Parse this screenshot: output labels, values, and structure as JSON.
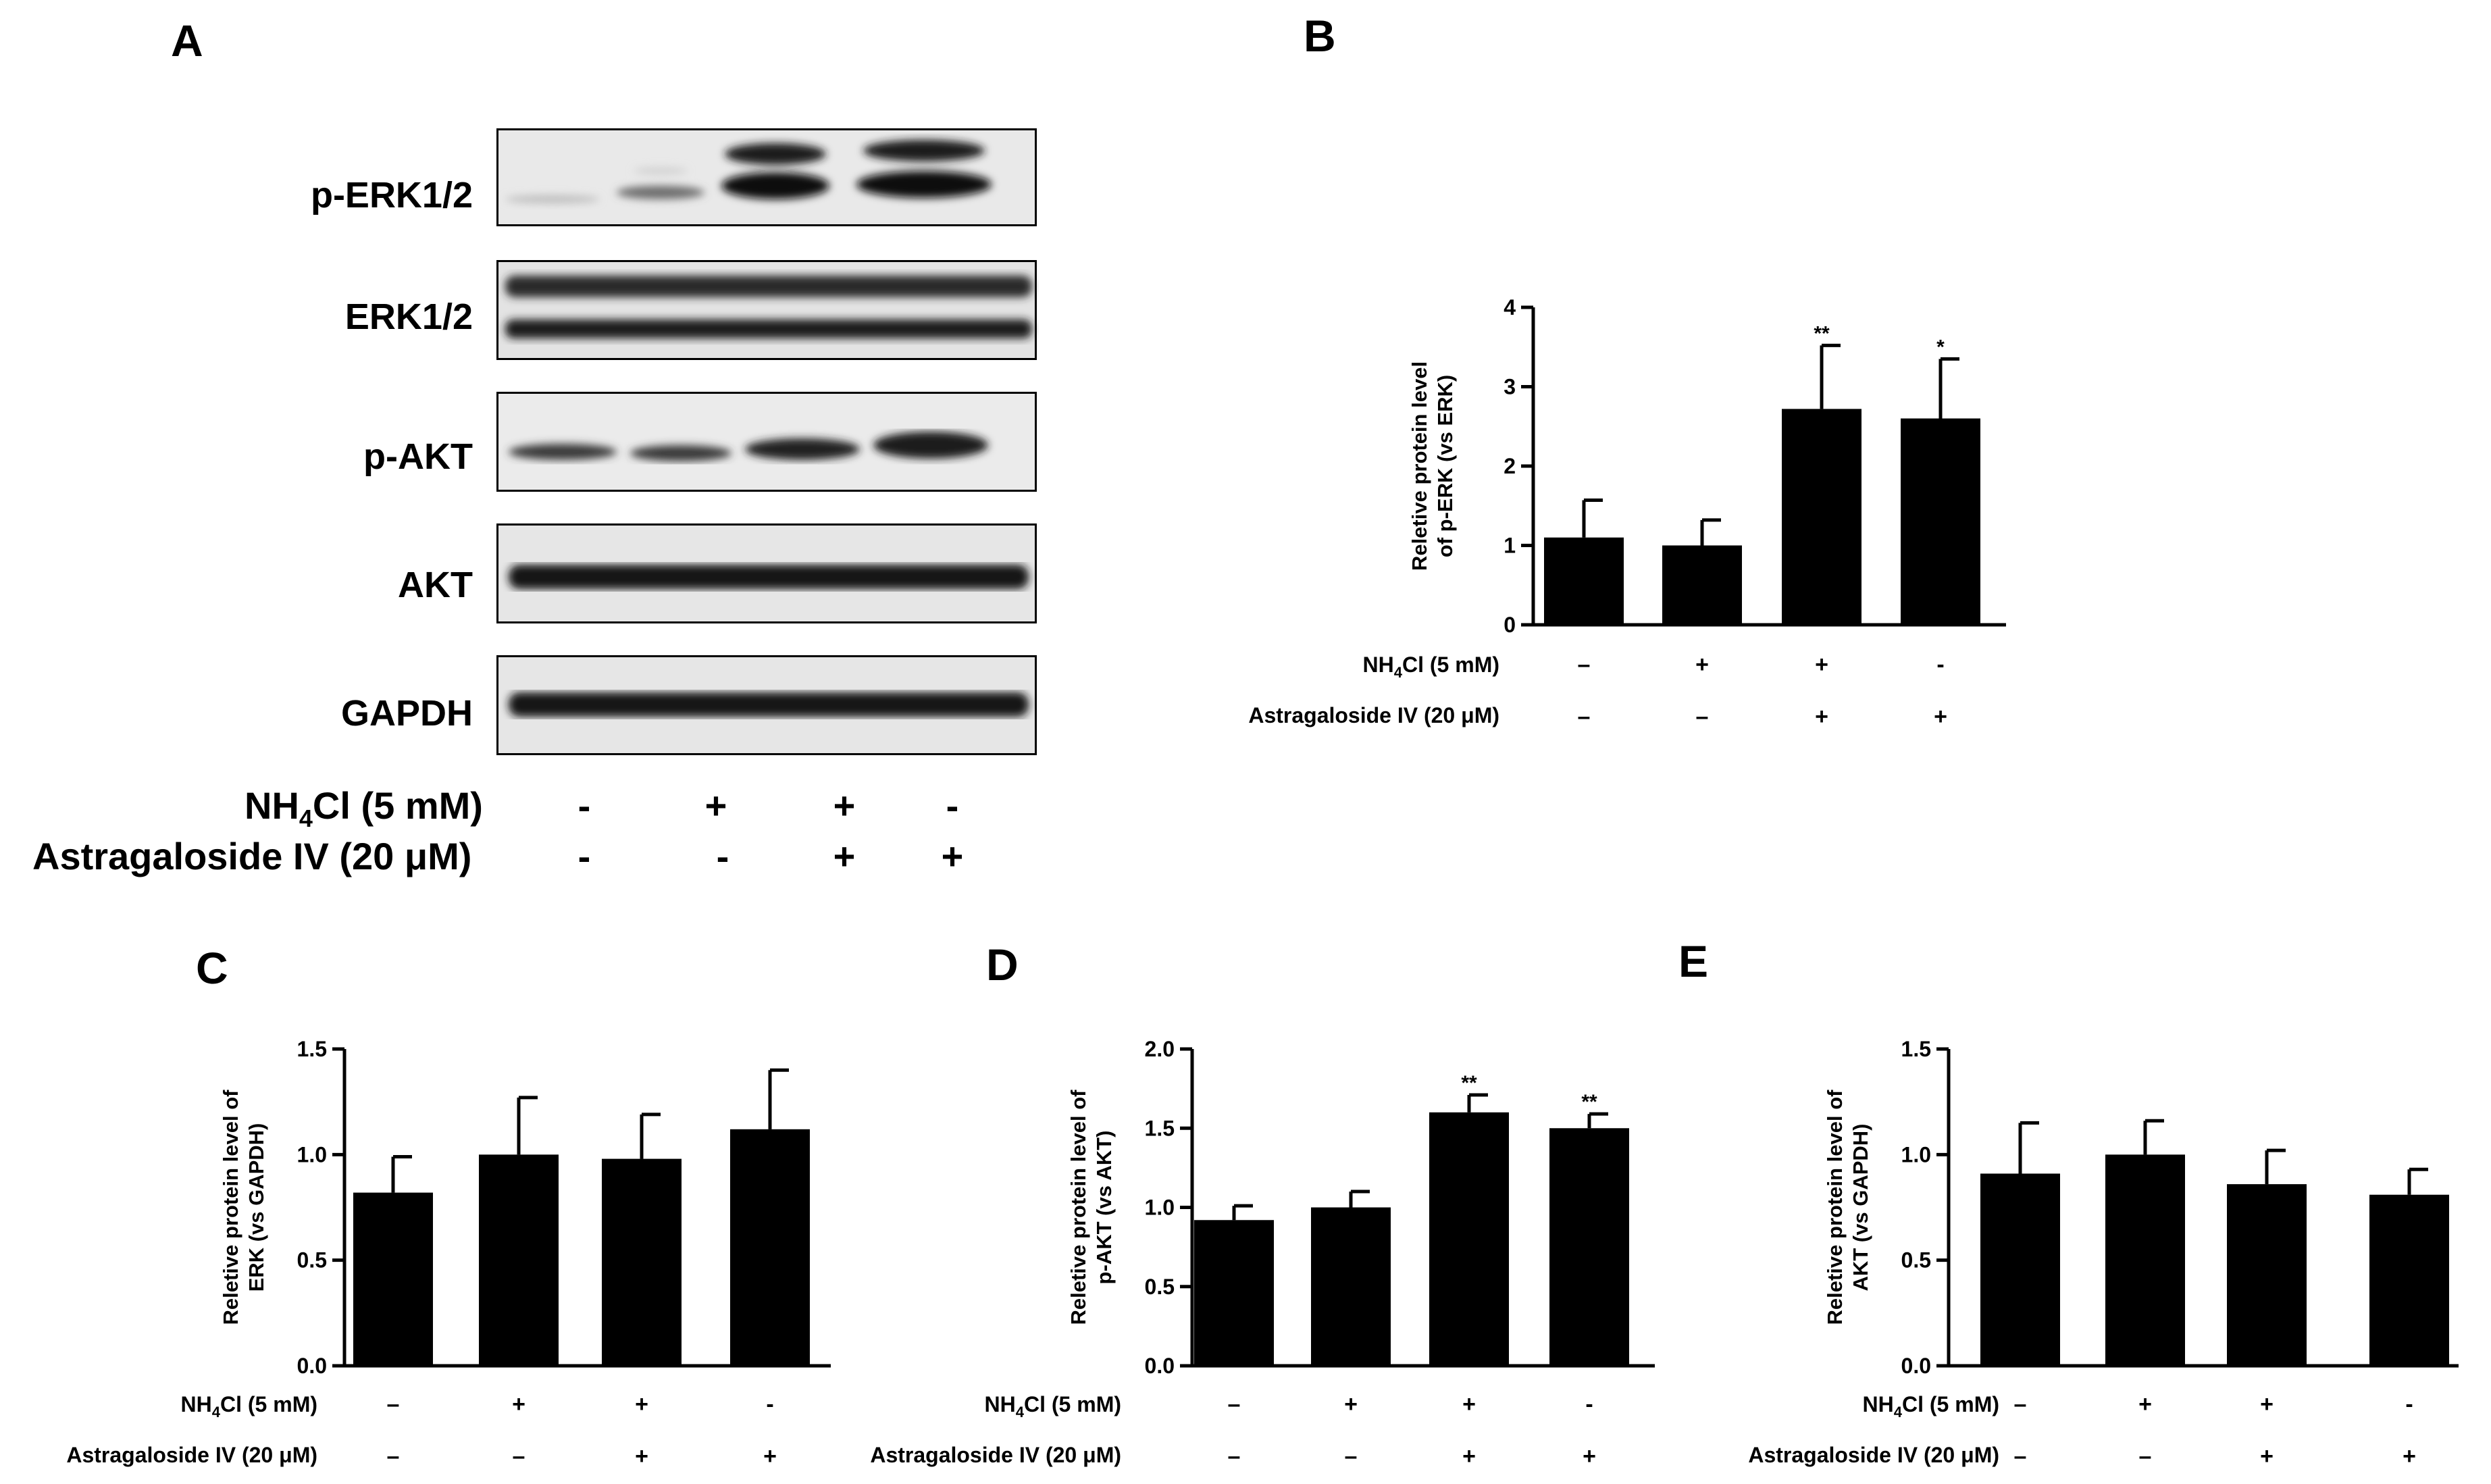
{
  "panel_a": {
    "letter": "A",
    "bands": [
      {
        "name": "p-ERK1/2"
      },
      {
        "name": "ERK1/2"
      },
      {
        "name": "p-AKT"
      },
      {
        "name": "AKT"
      },
      {
        "name": "GAPDH"
      }
    ],
    "treatments": {
      "nh4cl_label": "NH",
      "nh4cl_sub": "4",
      "nh4cl_rest": "Cl (5  mM)",
      "nh4cl_signs": [
        "-",
        "+",
        "+",
        "-"
      ],
      "astra_label": "Astragaloside IV (20  μM)",
      "astra_signs": [
        "-",
        "-",
        "+",
        "+"
      ]
    }
  },
  "chart_data": [
    {
      "panel": "B",
      "type": "bar",
      "ylabel_line1": "Reletive protein level",
      "ylabel_line2": "of p-ERK (vs ERK)",
      "ylim": [
        0,
        4
      ],
      "yticks": [
        "0",
        "1",
        "2",
        "3",
        "4"
      ],
      "values": [
        1.1,
        1.0,
        2.72,
        2.6
      ],
      "errors": [
        0.47,
        0.32,
        0.8,
        0.75
      ],
      "significance": [
        "",
        "",
        "**",
        "*"
      ],
      "nh4cl_signs": [
        "–",
        "+",
        "+",
        "-"
      ],
      "astra_signs": [
        "–",
        "–",
        "+",
        "+"
      ],
      "nh4cl_label": "NH",
      "nh4cl_sub": "4",
      "nh4cl_rest": "Cl (5  mM)",
      "astra_label": "Astragaloside IV (20  μM)"
    },
    {
      "panel": "C",
      "type": "bar",
      "ylabel_line1": "Reletive protein level of",
      "ylabel_line2": "ERK (vs GAPDH)",
      "ylim": [
        0,
        1.5
      ],
      "yticks": [
        "0.0",
        "0.5",
        "1.0",
        "1.5"
      ],
      "values": [
        0.82,
        1.0,
        0.98,
        1.12
      ],
      "errors": [
        0.17,
        0.27,
        0.21,
        0.28
      ],
      "significance": [
        "",
        "",
        "",
        ""
      ],
      "nh4cl_signs": [
        "–",
        "+",
        "+",
        "-"
      ],
      "astra_signs": [
        "–",
        "–",
        "+",
        "+"
      ],
      "nh4cl_label": "NH",
      "nh4cl_sub": "4",
      "nh4cl_rest": "Cl (5  mM)",
      "astra_label": "Astragaloside IV (20  μM)"
    },
    {
      "panel": "D",
      "type": "bar",
      "ylabel_line1": "Reletive protein level of",
      "ylabel_line2": "p-AKT (vs AKT)",
      "ylim": [
        0,
        2.0
      ],
      "yticks": [
        "0.0",
        "0.5",
        "1.0",
        "1.5",
        "2.0"
      ],
      "values": [
        0.92,
        1.0,
        1.6,
        1.5
      ],
      "errors": [
        0.09,
        0.1,
        0.11,
        0.09
      ],
      "significance": [
        "",
        "",
        "**",
        "**"
      ],
      "nh4cl_signs": [
        "–",
        "+",
        "+",
        "-"
      ],
      "astra_signs": [
        "–",
        "–",
        "+",
        "+"
      ],
      "nh4cl_label": "NH",
      "nh4cl_sub": "4",
      "nh4cl_rest": "Cl (5  mM)",
      "astra_label": "Astragaloside IV (20  μM)"
    },
    {
      "panel": "E",
      "type": "bar",
      "ylabel_line1": "Reletive protein level of",
      "ylabel_line2": "AKT (vs GAPDH)",
      "ylim": [
        0,
        1.5
      ],
      "yticks": [
        "0.0",
        "0.5",
        "1.0",
        "1.5"
      ],
      "values": [
        0.91,
        1.0,
        0.86,
        0.81
      ],
      "errors": [
        0.24,
        0.16,
        0.16,
        0.12
      ],
      "significance": [
        "",
        "",
        "",
        ""
      ],
      "nh4cl_signs": [
        "–",
        "+",
        "+",
        "-"
      ],
      "astra_signs": [
        "–",
        "–",
        "+",
        "+"
      ],
      "nh4cl_label": "NH",
      "nh4cl_sub": "4",
      "nh4cl_rest": "Cl (5  mM)",
      "astra_label": "Astragaloside IV (20  μM)"
    }
  ]
}
